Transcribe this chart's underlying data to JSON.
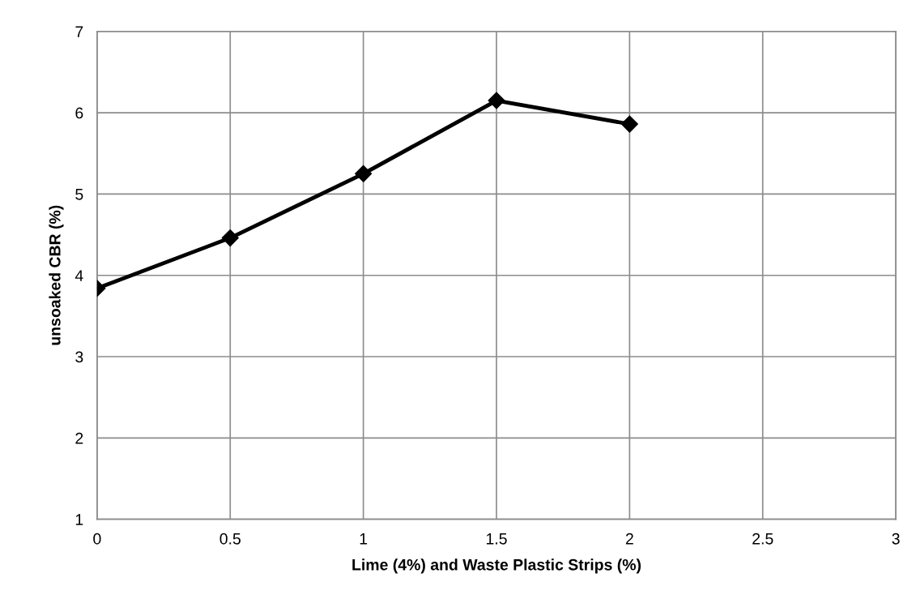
{
  "chart_data": {
    "type": "line",
    "xlabel": "Lime (4%) and Waste Plastic Strips (%)",
    "ylabel": "unsoaked CBR (%)",
    "x": [
      0,
      0.5,
      1,
      1.5,
      2
    ],
    "series": [
      {
        "color": "#000000",
        "values": [
          3.84,
          4.46,
          5.25,
          6.15,
          5.86
        ]
      }
    ],
    "xlim": [
      0,
      3
    ],
    "xticks": [
      0,
      0.5,
      1,
      1.5,
      2,
      2.5,
      3
    ],
    "ylim": [
      1,
      7
    ],
    "yticks": [
      1,
      2,
      3,
      4,
      5,
      6,
      7
    ],
    "grid": true,
    "marker": "diamond",
    "line_style": "solid"
  }
}
